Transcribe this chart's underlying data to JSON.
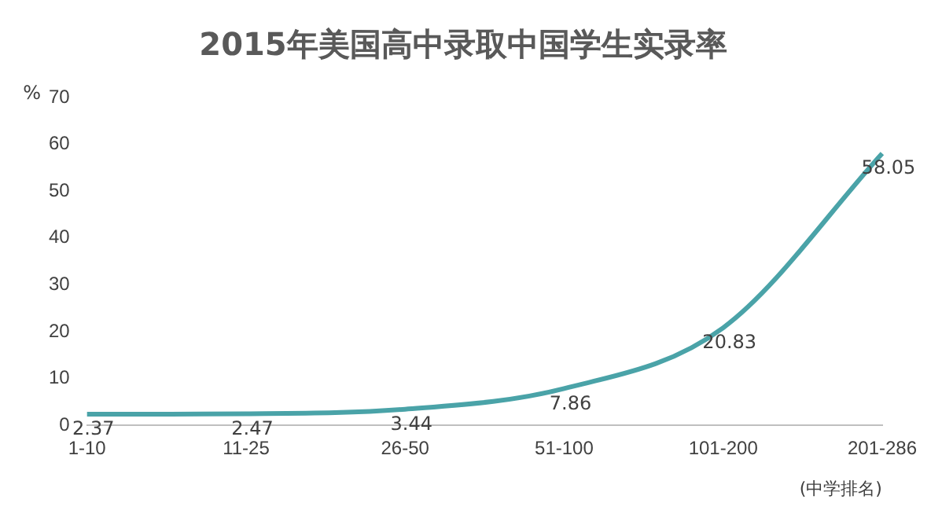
{
  "chart_data": {
    "type": "line",
    "title": "2015年美国高中录取中国学生实录率",
    "ylabel": "%",
    "xlabel": "(中学排名)",
    "categories": [
      "1-10",
      "11-25",
      "26-50",
      "51-100",
      "101-200",
      "201-286"
    ],
    "series": [
      {
        "color": "#4aa3a8",
        "values": [
          2.37,
          2.47,
          3.44,
          7.86,
          20.83,
          58.05
        ]
      }
    ],
    "ylim": [
      0,
      70
    ],
    "yticks": [
      0,
      10,
      20,
      30,
      40,
      50,
      60,
      70
    ],
    "data_labels": true,
    "marker": "none",
    "line_style": "solid",
    "grid": false,
    "legend": false
  }
}
